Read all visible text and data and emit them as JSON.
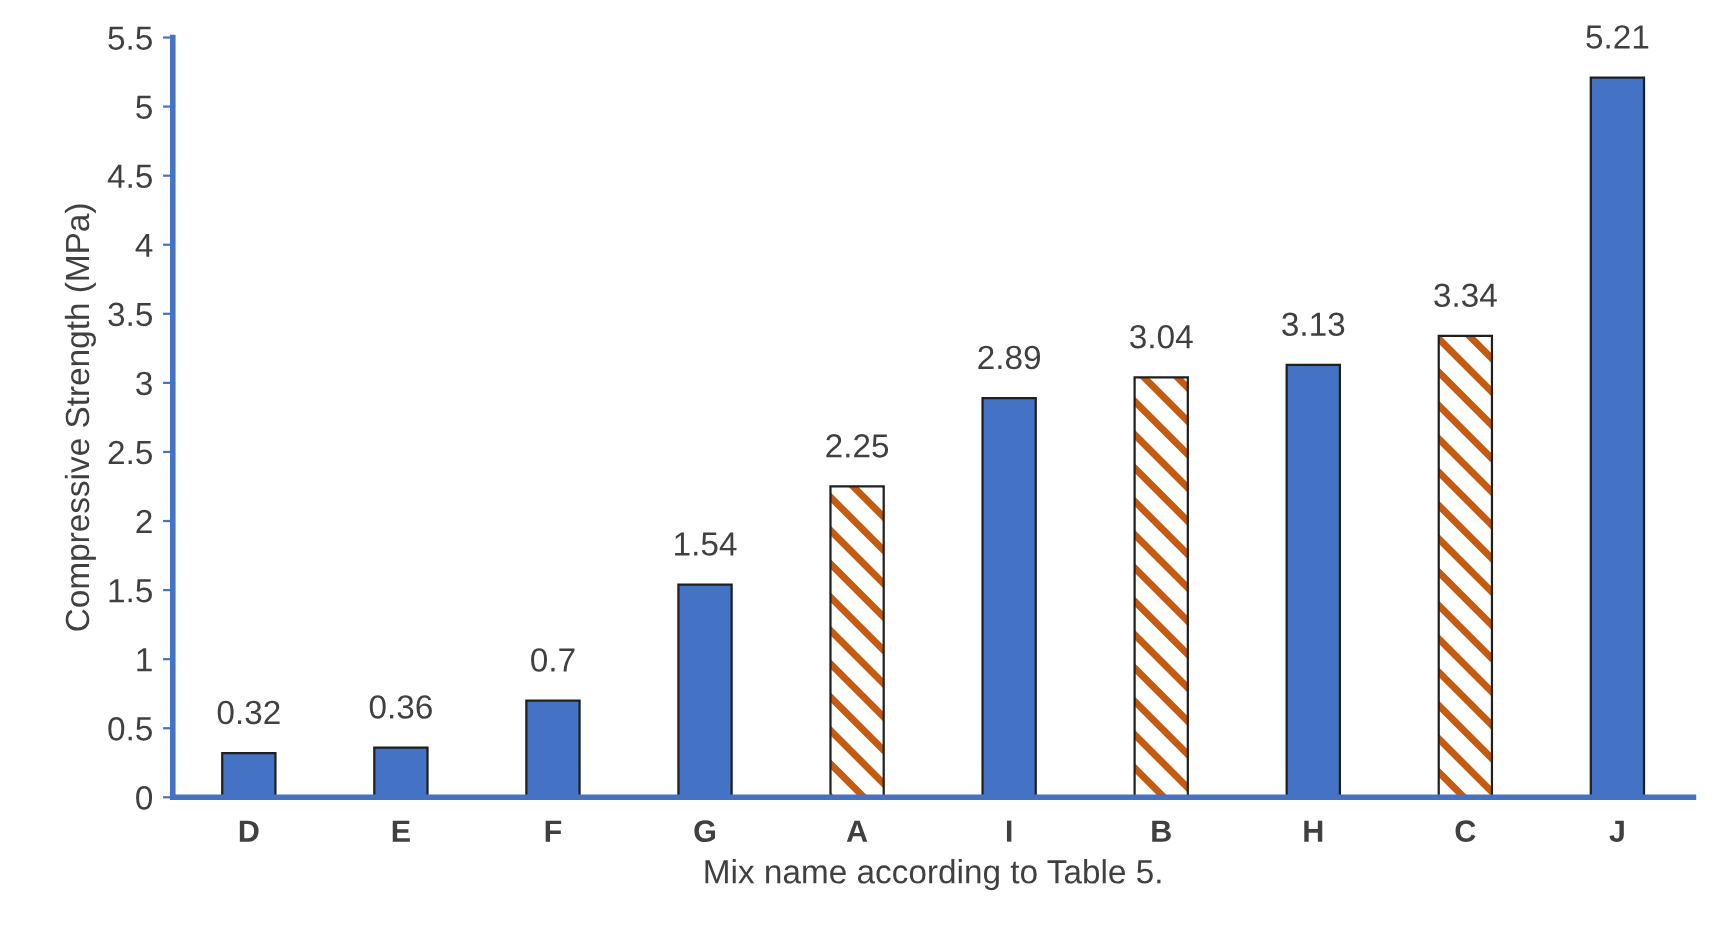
{
  "chart_data": {
    "type": "bar",
    "ylabel": "Compressive Strength (MPa)",
    "xlabel": "Mix name according to Table 5.",
    "categories": [
      "D",
      "E",
      "F",
      "G",
      "A",
      "I",
      "B",
      "H",
      "C",
      "J"
    ],
    "values": [
      0.32,
      0.36,
      0.7,
      1.54,
      2.25,
      2.89,
      3.04,
      3.13,
      3.34,
      5.21
    ],
    "color": "#4472c4",
    "colors": [
      "#4472c4",
      "#4472c4",
      "#4472c4",
      "#4472c4",
      "#c55a11",
      "#4472c4",
      "#c55a11",
      "#4472c4",
      "#c55a11",
      "#4472c4"
    ],
    "ylim": [
      0,
      5.5
    ],
    "yticks": [
      0,
      0.5,
      1,
      1.5,
      2,
      2.5,
      3,
      3.5,
      4,
      4.5,
      5,
      5.5
    ],
    "data_labels": true,
    "grid": false,
    "legend": false
  }
}
